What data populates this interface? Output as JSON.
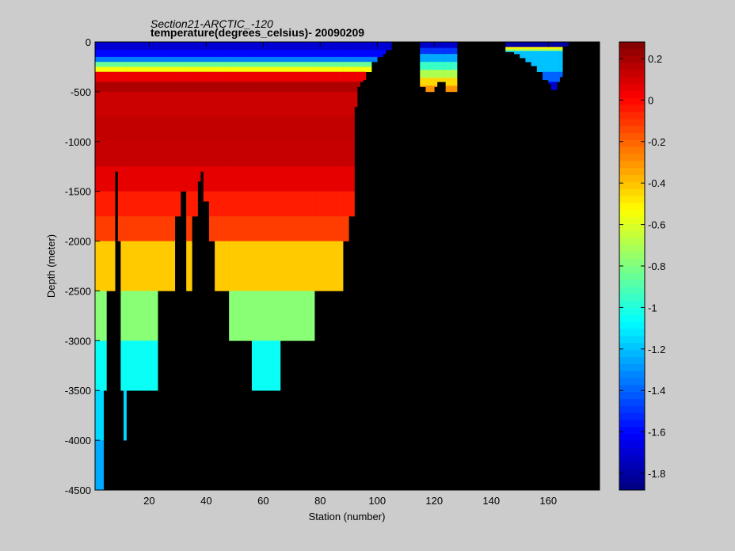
{
  "chart_data": {
    "type": "heatmap",
    "title": "Section21-ARCTIC_-120",
    "subtitle": "temperature(degrees_celsius)- 20090209",
    "xlabel": "Station (number)",
    "ylabel": "Depth (meter)",
    "xlim": [
      1,
      178
    ],
    "ylim": [
      -4500,
      0
    ],
    "x_ticks": [
      20,
      40,
      60,
      80,
      100,
      120,
      140,
      160
    ],
    "y_ticks": [
      0,
      -500,
      -1000,
      -1500,
      -2000,
      -2500,
      -3000,
      -3500,
      -4000,
      -4500
    ],
    "colorbar": {
      "range": [
        -1.88,
        0.28
      ],
      "ticks": [
        0.2,
        0,
        -0.2,
        -0.4,
        -0.6,
        -0.8,
        -1,
        -1.2,
        -1.4,
        -1.6,
        -1.8
      ],
      "colormap": "jet"
    },
    "background_color": "#000000",
    "columns": [
      {
        "x": [
          1,
          4
        ],
        "bottom": -4500,
        "profile": "deep"
      },
      {
        "x": [
          4,
          5
        ],
        "bottom": -3500,
        "profile": "deep"
      },
      {
        "x": [
          5,
          8
        ],
        "bottom": -2500,
        "profile": "deep"
      },
      {
        "x": [
          8,
          9
        ],
        "bottom": -1300,
        "profile": "deep"
      },
      {
        "x": [
          9,
          10
        ],
        "bottom": -2000,
        "profile": "deep"
      },
      {
        "x": [
          10,
          11
        ],
        "bottom": -3500,
        "profile": "deep"
      },
      {
        "x": [
          11,
          12
        ],
        "bottom": -4000,
        "profile": "deep"
      },
      {
        "x": [
          12,
          23
        ],
        "bottom": -3500,
        "profile": "deep"
      },
      {
        "x": [
          23,
          29
        ],
        "bottom": -2500,
        "profile": "deep"
      },
      {
        "x": [
          29,
          31
        ],
        "bottom": -1750,
        "profile": "deep"
      },
      {
        "x": [
          31,
          33
        ],
        "bottom": -1500,
        "profile": "deep"
      },
      {
        "x": [
          33,
          35
        ],
        "bottom": -2500,
        "profile": "deep"
      },
      {
        "x": [
          35,
          37
        ],
        "bottom": -1750,
        "profile": "deep"
      },
      {
        "x": [
          37,
          38
        ],
        "bottom": -1400,
        "profile": "deep"
      },
      {
        "x": [
          38,
          39
        ],
        "bottom": -1300,
        "profile": "deep"
      },
      {
        "x": [
          39,
          41
        ],
        "bottom": -1600,
        "profile": "deep"
      },
      {
        "x": [
          41,
          43
        ],
        "bottom": -2000,
        "profile": "deep"
      },
      {
        "x": [
          43,
          48
        ],
        "bottom": -2500,
        "profile": "deep"
      },
      {
        "x": [
          48,
          56
        ],
        "bottom": -3000,
        "profile": "deep"
      },
      {
        "x": [
          56,
          66
        ],
        "bottom": -3500,
        "profile": "deep"
      },
      {
        "x": [
          66,
          78
        ],
        "bottom": -3000,
        "profile": "deep"
      },
      {
        "x": [
          78,
          82
        ],
        "bottom": -2500,
        "profile": "deep"
      },
      {
        "x": [
          82,
          88
        ],
        "bottom": -2500,
        "profile": "deep"
      },
      {
        "x": [
          88,
          90
        ],
        "bottom": -2000,
        "profile": "deep"
      },
      {
        "x": [
          90,
          92
        ],
        "bottom": -1750,
        "profile": "deep"
      },
      {
        "x": [
          92,
          93
        ],
        "bottom": -650,
        "profile": "deep"
      },
      {
        "x": [
          93,
          94
        ],
        "bottom": -450,
        "profile": "deep"
      },
      {
        "x": [
          94,
          95
        ],
        "bottom": -400,
        "profile": "deep"
      },
      {
        "x": [
          95,
          96
        ],
        "bottom": -380,
        "profile": "deep"
      },
      {
        "x": [
          96,
          98
        ],
        "bottom": -300,
        "profile": "deep"
      },
      {
        "x": [
          98,
          100
        ],
        "bottom": -200,
        "profile": "deep"
      },
      {
        "x": [
          100,
          102
        ],
        "bottom": -150,
        "profile": "deep"
      },
      {
        "x": [
          102,
          103
        ],
        "bottom": -120,
        "profile": "deep"
      },
      {
        "x": [
          103,
          105
        ],
        "bottom": -80,
        "profile": "deep"
      },
      {
        "x": [
          115,
          117
        ],
        "bottom": -450,
        "profile": "shelf_west"
      },
      {
        "x": [
          117,
          118
        ],
        "bottom": -500,
        "profile": "shelf_west"
      },
      {
        "x": [
          118,
          120
        ],
        "bottom": -500,
        "profile": "shelf_west"
      },
      {
        "x": [
          120,
          121
        ],
        "bottom": -450,
        "profile": "shelf_west"
      },
      {
        "x": [
          121,
          123
        ],
        "bottom": -400,
        "profile": "shelf_west"
      },
      {
        "x": [
          123,
          124
        ],
        "bottom": -400,
        "profile": "shelf_west"
      },
      {
        "x": [
          124,
          128
        ],
        "bottom": -500,
        "profile": "shelf_west"
      },
      {
        "x": [
          145,
          148
        ],
        "bottom": -100,
        "profile": "shelf_east"
      },
      {
        "x": [
          148,
          150
        ],
        "bottom": -120,
        "profile": "shelf_east"
      },
      {
        "x": [
          150,
          152
        ],
        "bottom": -160,
        "profile": "shelf_east"
      },
      {
        "x": [
          152,
          154
        ],
        "bottom": -200,
        "profile": "shelf_east"
      },
      {
        "x": [
          154,
          156
        ],
        "bottom": -240,
        "profile": "shelf_east"
      },
      {
        "x": [
          156,
          158
        ],
        "bottom": -300,
        "profile": "shelf_east"
      },
      {
        "x": [
          158,
          160
        ],
        "bottom": -380,
        "profile": "shelf_east"
      },
      {
        "x": [
          160,
          161
        ],
        "bottom": -420,
        "profile": "shelf_east"
      },
      {
        "x": [
          161,
          163
        ],
        "bottom": -480,
        "profile": "shelf_east"
      },
      {
        "x": [
          163,
          164
        ],
        "bottom": -400,
        "profile": "shelf_east"
      },
      {
        "x": [
          164,
          165
        ],
        "bottom": -350,
        "profile": "shelf_east"
      },
      {
        "x": [
          165,
          167
        ],
        "bottom": -40,
        "profile": "shelf_east"
      }
    ],
    "profiles": {
      "deep": [
        {
          "top": 0,
          "bottom": -80,
          "value": -1.7
        },
        {
          "top": -80,
          "bottom": -150,
          "value": -1.6
        },
        {
          "top": -150,
          "bottom": -200,
          "value": -1.35
        },
        {
          "top": -200,
          "bottom": -250,
          "value": -0.85
        },
        {
          "top": -250,
          "bottom": -300,
          "value": -0.55
        },
        {
          "top": -300,
          "bottom": -400,
          "value": 0.05
        },
        {
          "top": -400,
          "bottom": -500,
          "value": 0.18
        },
        {
          "top": -500,
          "bottom": -750,
          "value": 0.12
        },
        {
          "top": -750,
          "bottom": -1000,
          "value": 0.14
        },
        {
          "top": -1000,
          "bottom": -1250,
          "value": 0.13
        },
        {
          "top": -1250,
          "bottom": -1500,
          "value": 0.06
        },
        {
          "top": -1500,
          "bottom": -1750,
          "value": -0.05
        },
        {
          "top": -1750,
          "bottom": -2000,
          "value": -0.12
        },
        {
          "top": -2000,
          "bottom": -2500,
          "value": -0.42
        },
        {
          "top": -2500,
          "bottom": -3000,
          "value": -0.78
        },
        {
          "top": -3000,
          "bottom": -3500,
          "value": -1.05
        },
        {
          "top": -3500,
          "bottom": -4000,
          "value": -1.15
        },
        {
          "top": -4000,
          "bottom": -4500,
          "value": -1.25
        }
      ],
      "shelf_west": [
        {
          "top": 0,
          "bottom": -60,
          "value": -1.72
        },
        {
          "top": -60,
          "bottom": -120,
          "value": -1.5
        },
        {
          "top": -120,
          "bottom": -200,
          "value": -1.25
        },
        {
          "top": -200,
          "bottom": -280,
          "value": -0.95
        },
        {
          "top": -280,
          "bottom": -360,
          "value": -0.7
        },
        {
          "top": -360,
          "bottom": -440,
          "value": -0.45
        },
        {
          "top": -440,
          "bottom": -500,
          "value": -0.3
        }
      ],
      "shelf_east": [
        {
          "top": 0,
          "bottom": -50,
          "value": -1.8
        },
        {
          "top": -50,
          "bottom": -70,
          "value": -0.5
        },
        {
          "top": -70,
          "bottom": -90,
          "value": -0.7
        },
        {
          "top": -90,
          "bottom": -300,
          "value": -1.2
        },
        {
          "top": -300,
          "bottom": -400,
          "value": -1.4
        },
        {
          "top": -400,
          "bottom": -500,
          "value": -1.7
        }
      ]
    }
  }
}
